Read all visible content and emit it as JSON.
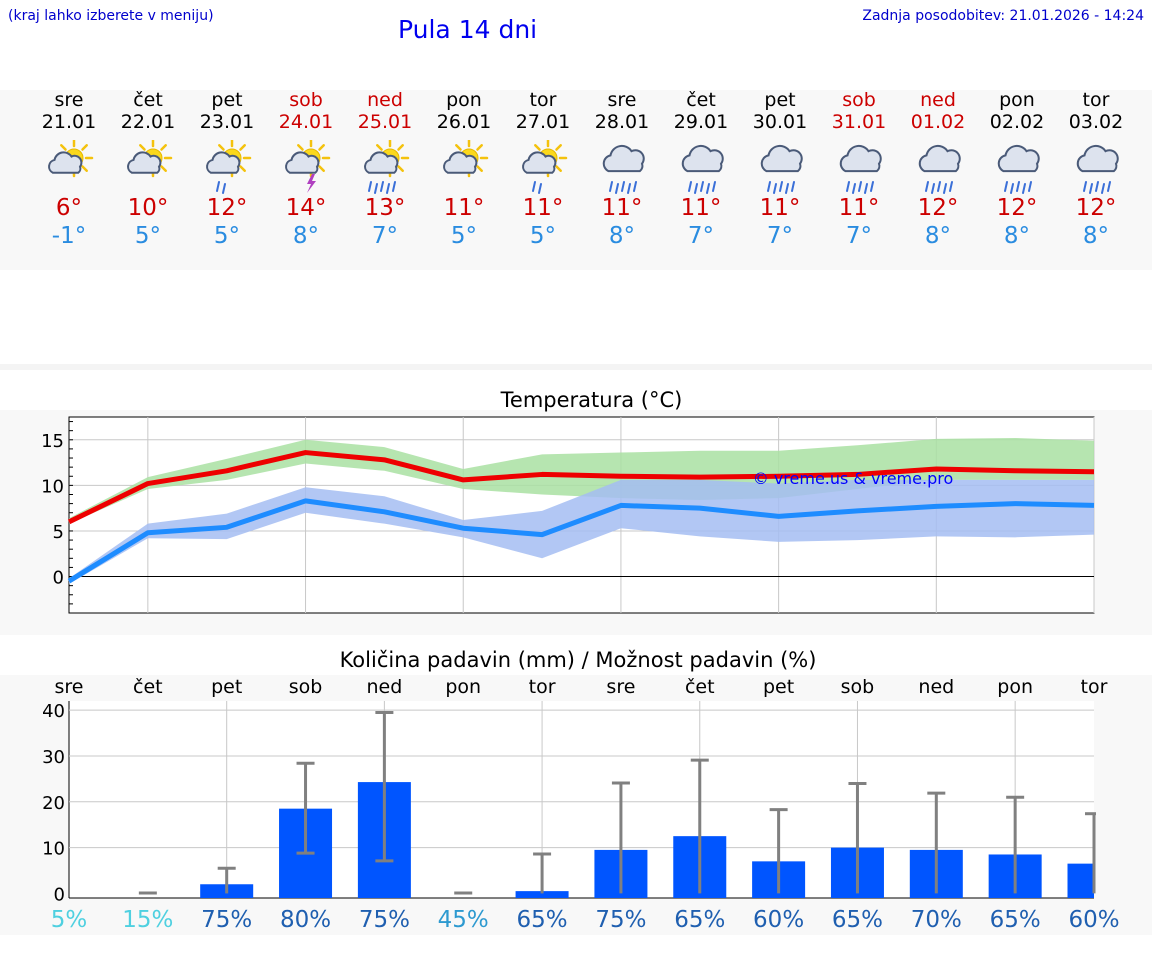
{
  "header": {
    "note": "(kraj lahko izberete v meniju)",
    "title": "Pula 14 dni",
    "updated": "Zadnja posodobitev: 21.01.2026 - 14:24"
  },
  "days": [
    {
      "name": "sre",
      "date": "21.01",
      "weekend": false,
      "icon": "sun-cloud",
      "tmax": "6°",
      "tmin": "-1°"
    },
    {
      "name": "čet",
      "date": "22.01",
      "weekend": false,
      "icon": "sun-cloud",
      "tmax": "10°",
      "tmin": "5°"
    },
    {
      "name": "pet",
      "date": "23.01",
      "weekend": false,
      "icon": "sun-cloud-light-rain",
      "tmax": "12°",
      "tmin": "5°"
    },
    {
      "name": "sob",
      "date": "24.01",
      "weekend": true,
      "icon": "sun-cloud-thunder",
      "tmax": "14°",
      "tmin": "8°"
    },
    {
      "name": "ned",
      "date": "25.01",
      "weekend": true,
      "icon": "sun-cloud-rain",
      "tmax": "13°",
      "tmin": "7°"
    },
    {
      "name": "pon",
      "date": "26.01",
      "weekend": false,
      "icon": "sun-cloud",
      "tmax": "11°",
      "tmin": "5°"
    },
    {
      "name": "tor",
      "date": "27.01",
      "weekend": false,
      "icon": "sun-cloud-light-rain",
      "tmax": "11°",
      "tmin": "5°"
    },
    {
      "name": "sre",
      "date": "28.01",
      "weekend": false,
      "icon": "cloud-rain",
      "tmax": "11°",
      "tmin": "8°"
    },
    {
      "name": "čet",
      "date": "29.01",
      "weekend": false,
      "icon": "cloud-rain",
      "tmax": "11°",
      "tmin": "7°"
    },
    {
      "name": "pet",
      "date": "30.01",
      "weekend": false,
      "icon": "cloud-rain",
      "tmax": "11°",
      "tmin": "7°"
    },
    {
      "name": "sob",
      "date": "31.01",
      "weekend": true,
      "icon": "cloud-rain",
      "tmax": "11°",
      "tmin": "7°"
    },
    {
      "name": "ned",
      "date": "01.02",
      "weekend": true,
      "icon": "cloud-rain",
      "tmax": "12°",
      "tmin": "8°"
    },
    {
      "name": "pon",
      "date": "02.02",
      "weekend": false,
      "icon": "cloud-rain",
      "tmax": "12°",
      "tmin": "8°"
    },
    {
      "name": "tor",
      "date": "03.02",
      "weekend": false,
      "icon": "cloud-rain",
      "tmax": "12°",
      "tmin": "8°"
    }
  ],
  "colors": {
    "max_line": "#ee0000",
    "max_band": "#a9e0a2",
    "min_line": "#1e8cff",
    "min_band": "#a4bdf2",
    "bar": "#0055ff",
    "error": "#808080",
    "grid": "#c8c8c8"
  },
  "chart_data": [
    {
      "type": "line",
      "title": "Temperatura (°C)",
      "watermark": "© vreme.us & vreme.pro",
      "ylim": [
        -4,
        17.5
      ],
      "yticks": [
        0,
        5,
        10,
        15
      ],
      "x": [
        0,
        1,
        2,
        3,
        4,
        5,
        6,
        7,
        8,
        9,
        10,
        11,
        12,
        13
      ],
      "series": [
        {
          "name": "max",
          "values": [
            6,
            10.2,
            11.6,
            13.6,
            12.8,
            10.6,
            11.2,
            11.0,
            10.9,
            11.0,
            11.2,
            11.8,
            11.6,
            11.5
          ],
          "band_low": [
            5.8,
            9.6,
            10.6,
            12.4,
            11.6,
            9.6,
            9.0,
            8.6,
            8.4,
            8.6,
            9.6,
            10.6,
            10.6,
            10.6
          ],
          "band_high": [
            6.4,
            10.9,
            12.9,
            15.0,
            14.2,
            11.8,
            13.4,
            13.6,
            13.8,
            13.8,
            14.4,
            15.1,
            15.2,
            14.9
          ]
        },
        {
          "name": "min",
          "values": [
            -0.5,
            4.8,
            5.4,
            8.3,
            7.1,
            5.3,
            4.6,
            7.8,
            7.5,
            6.6,
            7.2,
            7.7,
            8.0,
            7.8
          ],
          "band_low": [
            -0.8,
            4.2,
            4.1,
            7.0,
            5.8,
            4.3,
            2.0,
            5.3,
            4.4,
            3.8,
            4.0,
            4.4,
            4.3,
            4.6
          ],
          "band_high": [
            -0.2,
            5.8,
            6.9,
            9.8,
            8.8,
            6.2,
            7.2,
            10.6,
            10.6,
            10.2,
            10.6,
            10.6,
            10.6,
            10.6
          ]
        }
      ]
    },
    {
      "type": "bar",
      "title": "Količina padavin (mm) / Možnost padavin (%)",
      "ylim": [
        -1,
        42
      ],
      "yticks": [
        0,
        10,
        20,
        30,
        40
      ],
      "categories": [
        "sre",
        "čet",
        "pet",
        "sob",
        "ned",
        "pon",
        "tor",
        "sre",
        "čet",
        "pet",
        "sob",
        "ned",
        "pon",
        "tor"
      ],
      "values": [
        0,
        0,
        2,
        18.5,
        24.3,
        0,
        0.5,
        9.5,
        12.5,
        7,
        10,
        9.5,
        8.5,
        6.5
      ],
      "err_low": [
        0,
        0,
        0,
        8.8,
        7.1,
        0,
        0,
        0,
        0,
        0,
        0,
        0,
        0,
        0
      ],
      "err_high": [
        0,
        0.1,
        5.5,
        28.4,
        39.5,
        0.1,
        8.6,
        24.1,
        29.1,
        18.3,
        24.0,
        21.9,
        21.0,
        17.4
      ],
      "probability": [
        "5%",
        "15%",
        "75%",
        "80%",
        "75%",
        "45%",
        "65%",
        "75%",
        "65%",
        "60%",
        "65%",
        "70%",
        "65%",
        "60%"
      ],
      "probability_values": [
        5,
        15,
        75,
        80,
        75,
        45,
        65,
        75,
        65,
        60,
        65,
        70,
        65,
        60
      ]
    }
  ]
}
